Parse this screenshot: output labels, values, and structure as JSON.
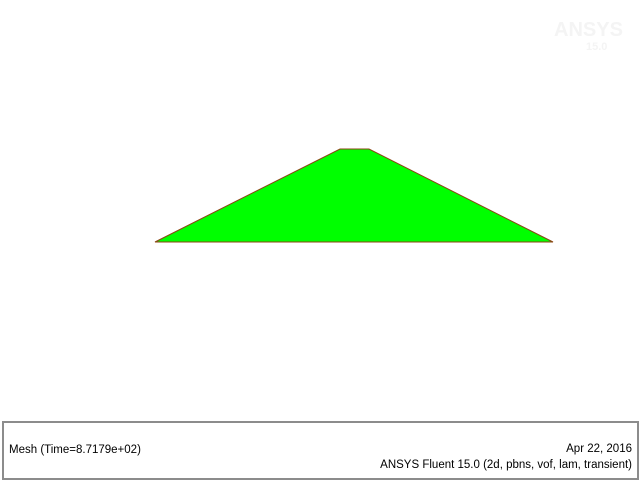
{
  "watermark": {
    "brand": "ANSYS",
    "version": "15.0"
  },
  "mesh": {
    "fill_color": "#00ff00",
    "edge_color": "#8b4513"
  },
  "footer": {
    "title": "Mesh  (Time=8.7179e+02)",
    "date": "Apr 22, 2016",
    "product": "ANSYS Fluent 15.0 (2d, pbns, vof, lam, transient)"
  }
}
